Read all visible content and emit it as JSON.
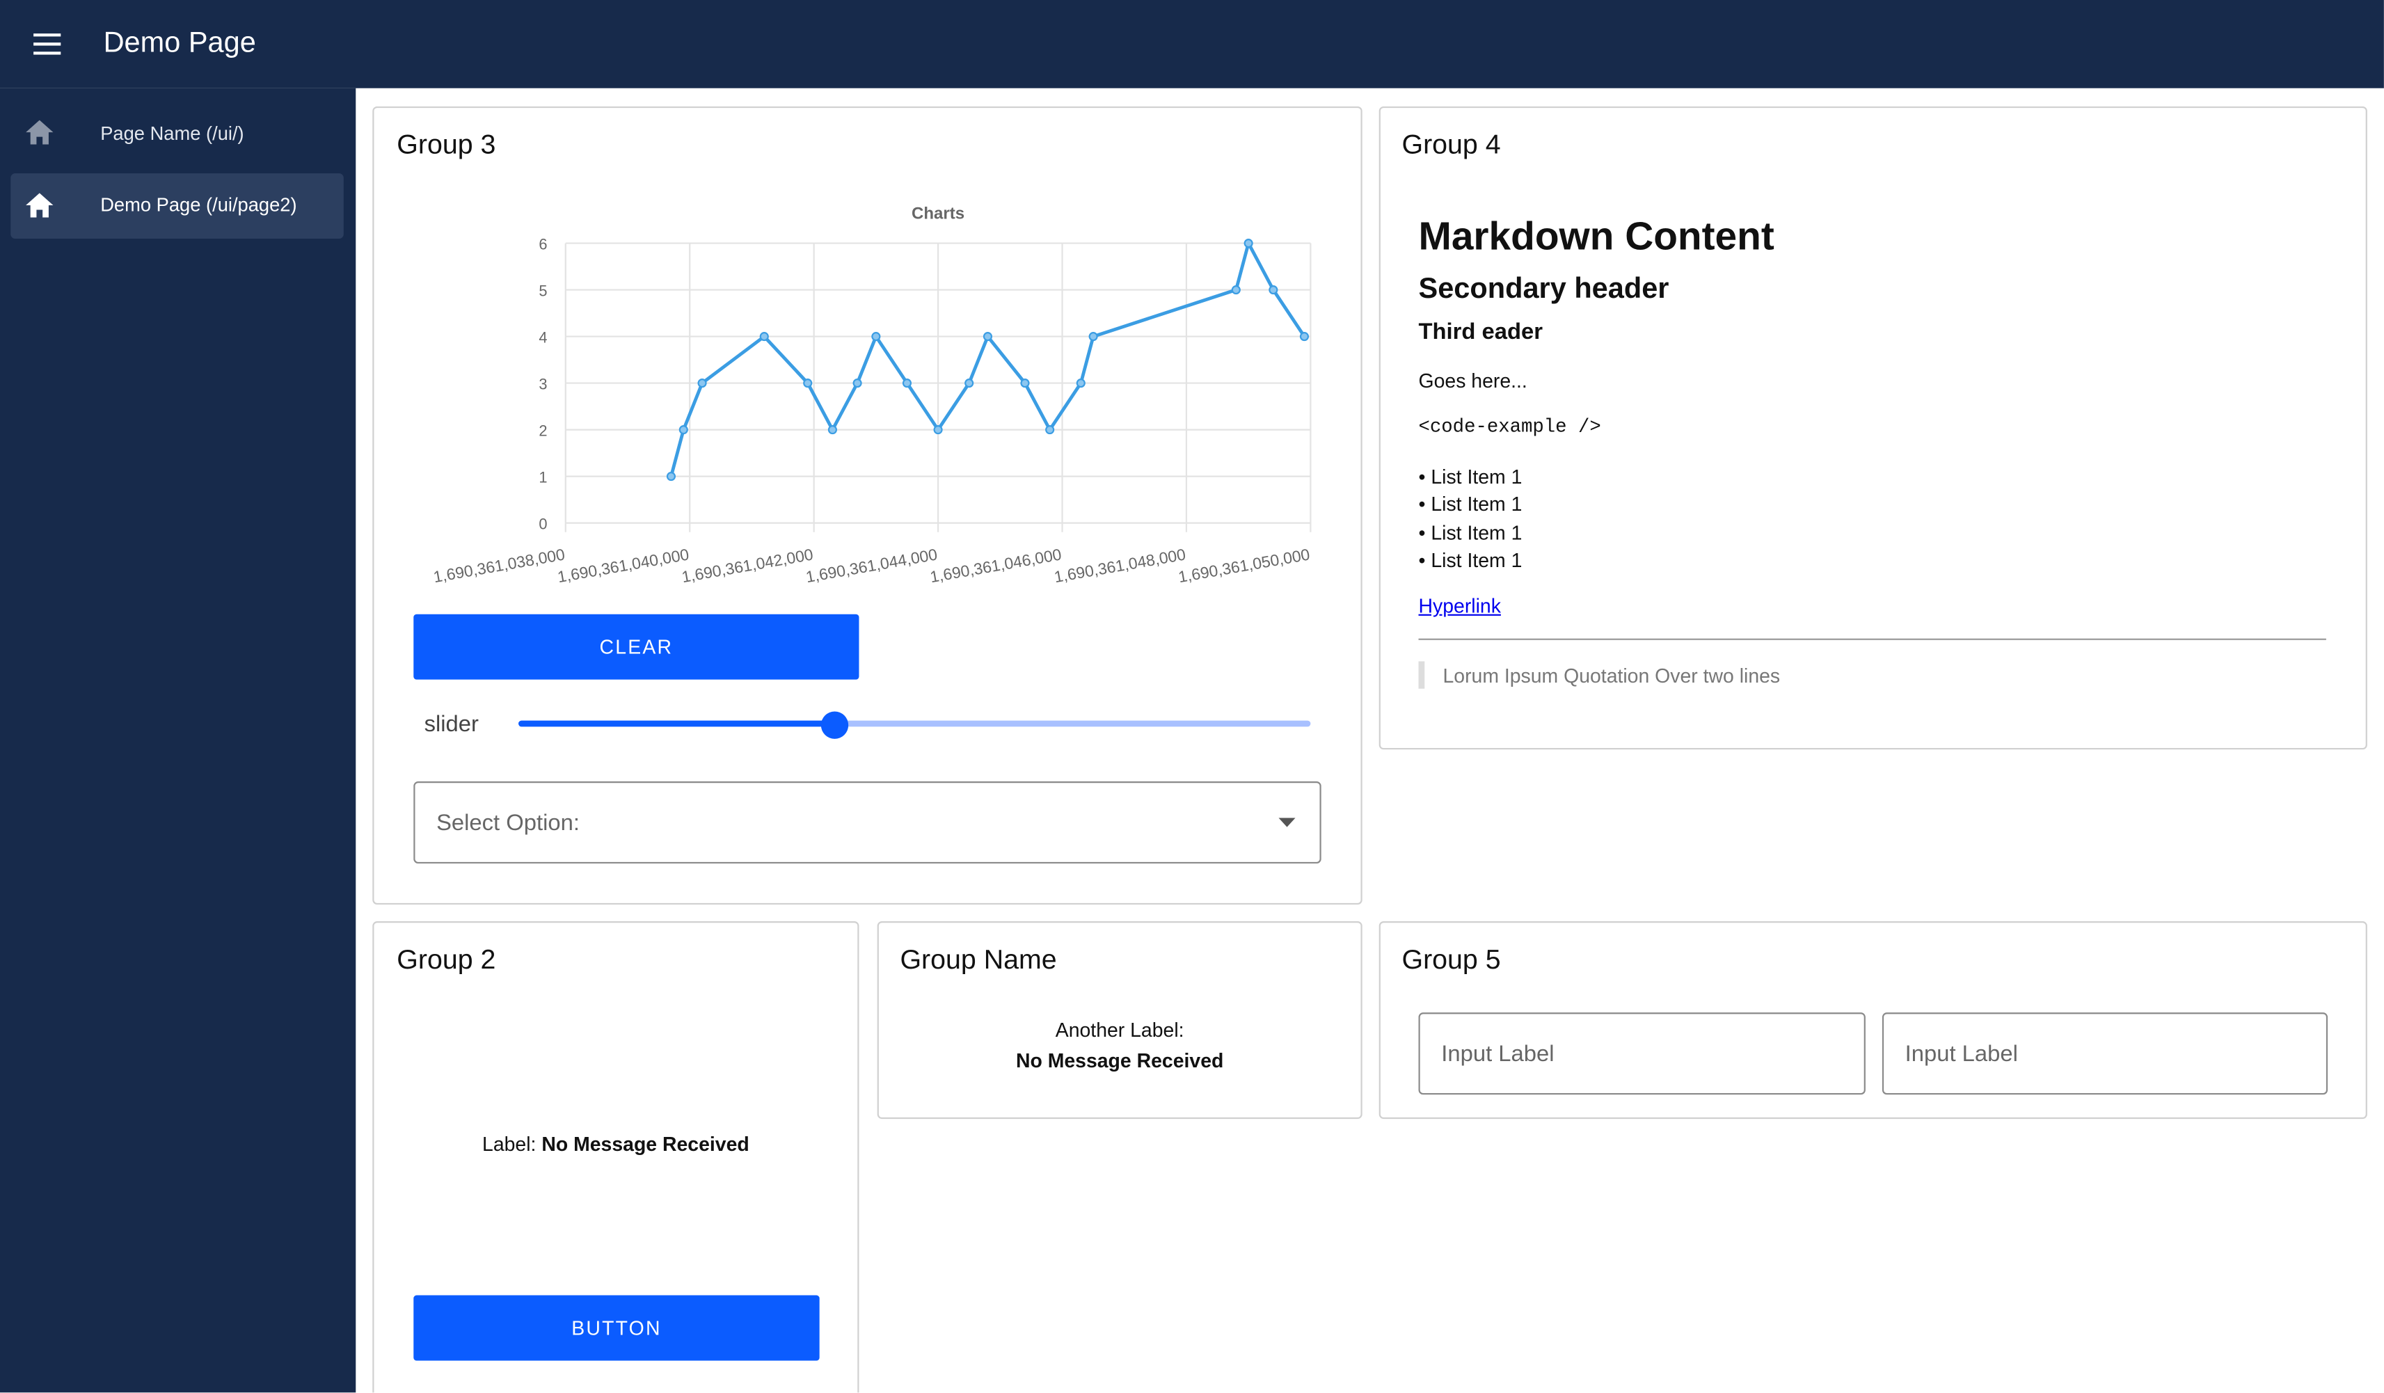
{
  "header": {
    "title": "Demo Page"
  },
  "nav": {
    "items": [
      "Page Name (/ui/)",
      "Demo Page (/ui/page2)"
    ]
  },
  "groups": [
    {
      "title": "Group 3",
      "button": "CLEAR",
      "slider_label": "slider",
      "select_placeholder": "Select Option:"
    },
    {
      "title": "Group 4",
      "markdown": {
        "h1": "Markdown Content",
        "h2": "Secondary header",
        "h3": "Third eader",
        "paragraph": "Goes here...",
        "code": "<code-example />",
        "list": [
          "List Item 1",
          "List Item 1",
          "List Item 1",
          "List Item 1"
        ],
        "link": "Hyperlink",
        "quote": "Lorum Ipsum Quotation Over two lines"
      }
    },
    {
      "title": "Group 2",
      "label": "Label:",
      "value": "No Message Received",
      "button": "BUTTON"
    },
    {
      "title": "Group Name",
      "label": "Another Label:",
      "value": "No Message Received"
    },
    {
      "title": "Group 5",
      "inputs": [
        "Input Label",
        "Input Label"
      ]
    }
  ],
  "chart_data": {
    "type": "line",
    "title": "Charts",
    "color": "#3b9de3",
    "grid": true,
    "x": [
      1690361039700,
      1690361039900,
      1690361040200,
      1690361041200,
      1690361041900,
      1690361042300,
      1690361042700,
      1690361043000,
      1690361043500,
      1690361044000,
      1690361044500,
      1690361044800,
      1690361045400,
      1690361045800,
      1690361046300,
      1690361046500,
      1690361048800,
      1690361049000,
      1690361049400,
      1690361049900
    ],
    "values": [
      1,
      2,
      3,
      4,
      3,
      2,
      3,
      4,
      3,
      2,
      3,
      4,
      3,
      2,
      3,
      4,
      5,
      6,
      5,
      4
    ],
    "xlim": [
      1690361038000,
      1690361050000
    ],
    "xticks": [
      {
        "value": 1690361038000,
        "label": "1,690,361,038,000"
      },
      {
        "value": 1690361040000,
        "label": "1,690,361,040,000"
      },
      {
        "value": 1690361042000,
        "label": "1,690,361,042,000"
      },
      {
        "value": 1690361044000,
        "label": "1,690,361,044,000"
      },
      {
        "value": 1690361046000,
        "label": "1,690,361,046,000"
      },
      {
        "value": 1690361048000,
        "label": "1,690,361,048,000"
      },
      {
        "value": 1690361050000,
        "label": "1,690,361,050,000"
      }
    ],
    "ylim": [
      0,
      6
    ],
    "yticks": [
      0,
      1,
      2,
      3,
      4,
      5,
      6
    ]
  }
}
